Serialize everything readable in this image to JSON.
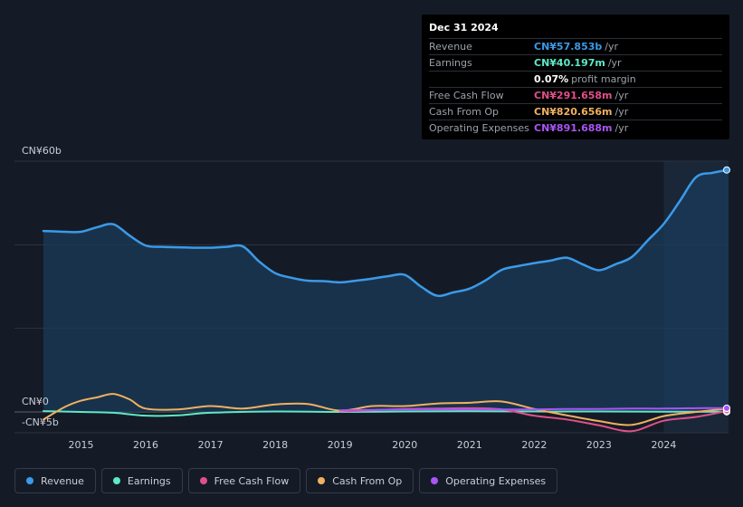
{
  "tooltip": {
    "date": "Dec 31 2024",
    "rows": [
      {
        "label": "Revenue",
        "value": "CN¥57.853b",
        "unit": "/yr",
        "color": "#3b9ae8"
      },
      {
        "label": "Earnings",
        "value": "CN¥40.197m",
        "unit": "/yr",
        "color": "#5ee8c6"
      },
      {
        "label": "",
        "value": "0.07%",
        "unit": "profit margin",
        "color": "#ffffff"
      },
      {
        "label": "Free Cash Flow",
        "value": "CN¥291.658m",
        "unit": "/yr",
        "color": "#e0508a"
      },
      {
        "label": "Cash From Op",
        "value": "CN¥820.656m",
        "unit": "/yr",
        "color": "#f0b060"
      },
      {
        "label": "Operating Expenses",
        "value": "CN¥891.688m",
        "unit": "/yr",
        "color": "#a855f7"
      }
    ]
  },
  "legend": [
    {
      "label": "Revenue",
      "color": "#3b9ae8"
    },
    {
      "label": "Earnings",
      "color": "#5ee8c6"
    },
    {
      "label": "Free Cash Flow",
      "color": "#e0508a"
    },
    {
      "label": "Cash From Op",
      "color": "#f0b060"
    },
    {
      "label": "Operating Expenses",
      "color": "#a855f7"
    }
  ],
  "chart_data": {
    "type": "area",
    "title": "",
    "xlabel": "",
    "ylabel": "",
    "ylim": [
      -5,
      60
    ],
    "xlim": [
      2014.42,
      2025.0
    ],
    "y_ticks": [
      {
        "value": 60,
        "label": "CN¥60b"
      },
      {
        "value": 0,
        "label": "CN¥0"
      },
      {
        "value": -5,
        "label": "-CN¥5b"
      }
    ],
    "x_ticks": [
      "2015",
      "2016",
      "2017",
      "2018",
      "2019",
      "2020",
      "2021",
      "2022",
      "2023",
      "2024"
    ],
    "x_tick_values": [
      2015,
      2016,
      2017,
      2018,
      2019,
      2020,
      2021,
      2022,
      2023,
      2024
    ],
    "highlight_start": 2024.0,
    "series": [
      {
        "name": "Revenue",
        "color": "#3b9ae8",
        "fill": true,
        "x": [
          2014.42,
          2014.75,
          2015.0,
          2015.25,
          2015.5,
          2015.75,
          2016.0,
          2016.25,
          2016.5,
          2016.75,
          2017.0,
          2017.25,
          2017.5,
          2017.75,
          2018.0,
          2018.25,
          2018.5,
          2018.75,
          2019.0,
          2019.25,
          2019.5,
          2019.75,
          2020.0,
          2020.25,
          2020.5,
          2020.75,
          2021.0,
          2021.25,
          2021.5,
          2021.75,
          2022.0,
          2022.25,
          2022.5,
          2022.75,
          2023.0,
          2023.25,
          2023.5,
          2023.75,
          2024.0,
          2024.25,
          2024.5,
          2024.75,
          2025.0
        ],
        "values": [
          43.3,
          43.1,
          43.1,
          44.2,
          44.9,
          42.2,
          39.8,
          39.5,
          39.4,
          39.3,
          39.3,
          39.5,
          39.6,
          36.0,
          33.2,
          32.1,
          31.4,
          31.3,
          31.0,
          31.4,
          31.9,
          32.5,
          32.8,
          30.0,
          27.8,
          28.6,
          29.5,
          31.5,
          34.0,
          34.9,
          35.6,
          36.2,
          36.9,
          35.3,
          33.9,
          35.3,
          37.0,
          41.0,
          45.0,
          50.5,
          56.2,
          57.2,
          57.9
        ]
      },
      {
        "name": "Earnings",
        "color": "#5ee8c6",
        "fill": false,
        "x": [
          2014.42,
          2015.0,
          2015.5,
          2016.0,
          2016.5,
          2017.0,
          2018.0,
          2019.0,
          2020.0,
          2021.0,
          2022.0,
          2023.0,
          2024.0,
          2025.0
        ],
        "values": [
          0.2,
          0.0,
          -0.2,
          -0.9,
          -0.8,
          -0.2,
          0.1,
          0.0,
          0.1,
          0.2,
          0.1,
          0.1,
          0.05,
          0.04
        ]
      },
      {
        "name": "Free Cash Flow",
        "color": "#e0508a",
        "fill": false,
        "x": [
          2019.0,
          2019.5,
          2020.0,
          2020.5,
          2021.0,
          2021.5,
          2022.0,
          2022.5,
          2023.0,
          2023.5,
          2024.0,
          2024.5,
          2025.0
        ],
        "values": [
          0.1,
          0.4,
          0.7,
          0.8,
          0.9,
          0.6,
          -0.9,
          -1.8,
          -3.2,
          -4.6,
          -2.1,
          -1.2,
          0.3
        ]
      },
      {
        "name": "Cash From Op",
        "color": "#f0b060",
        "fill": false,
        "x": [
          2014.42,
          2014.75,
          2015.0,
          2015.25,
          2015.5,
          2015.75,
          2016.0,
          2016.5,
          2017.0,
          2017.5,
          2018.0,
          2018.5,
          2019.0,
          2019.5,
          2020.0,
          2020.5,
          2021.0,
          2021.5,
          2022.0,
          2022.5,
          2023.0,
          2023.5,
          2024.0,
          2024.5,
          2025.0
        ],
        "values": [
          -1.8,
          1.2,
          2.7,
          3.5,
          4.3,
          3.0,
          0.8,
          0.6,
          1.4,
          0.8,
          1.8,
          1.9,
          0.3,
          1.4,
          1.4,
          2.0,
          2.2,
          2.5,
          0.7,
          -0.8,
          -2.2,
          -3.1,
          -1.0,
          0.0,
          0.8
        ]
      },
      {
        "name": "Operating Expenses",
        "color": "#a855f7",
        "fill": false,
        "x": [
          2019.0,
          2019.5,
          2020.0,
          2020.5,
          2021.0,
          2021.5,
          2022.0,
          2022.5,
          2023.0,
          2023.5,
          2024.0,
          2024.5,
          2025.0
        ],
        "values": [
          0.4,
          0.5,
          0.6,
          0.6,
          0.6,
          0.6,
          0.6,
          0.7,
          0.7,
          0.8,
          0.8,
          0.9,
          0.9
        ]
      }
    ]
  }
}
